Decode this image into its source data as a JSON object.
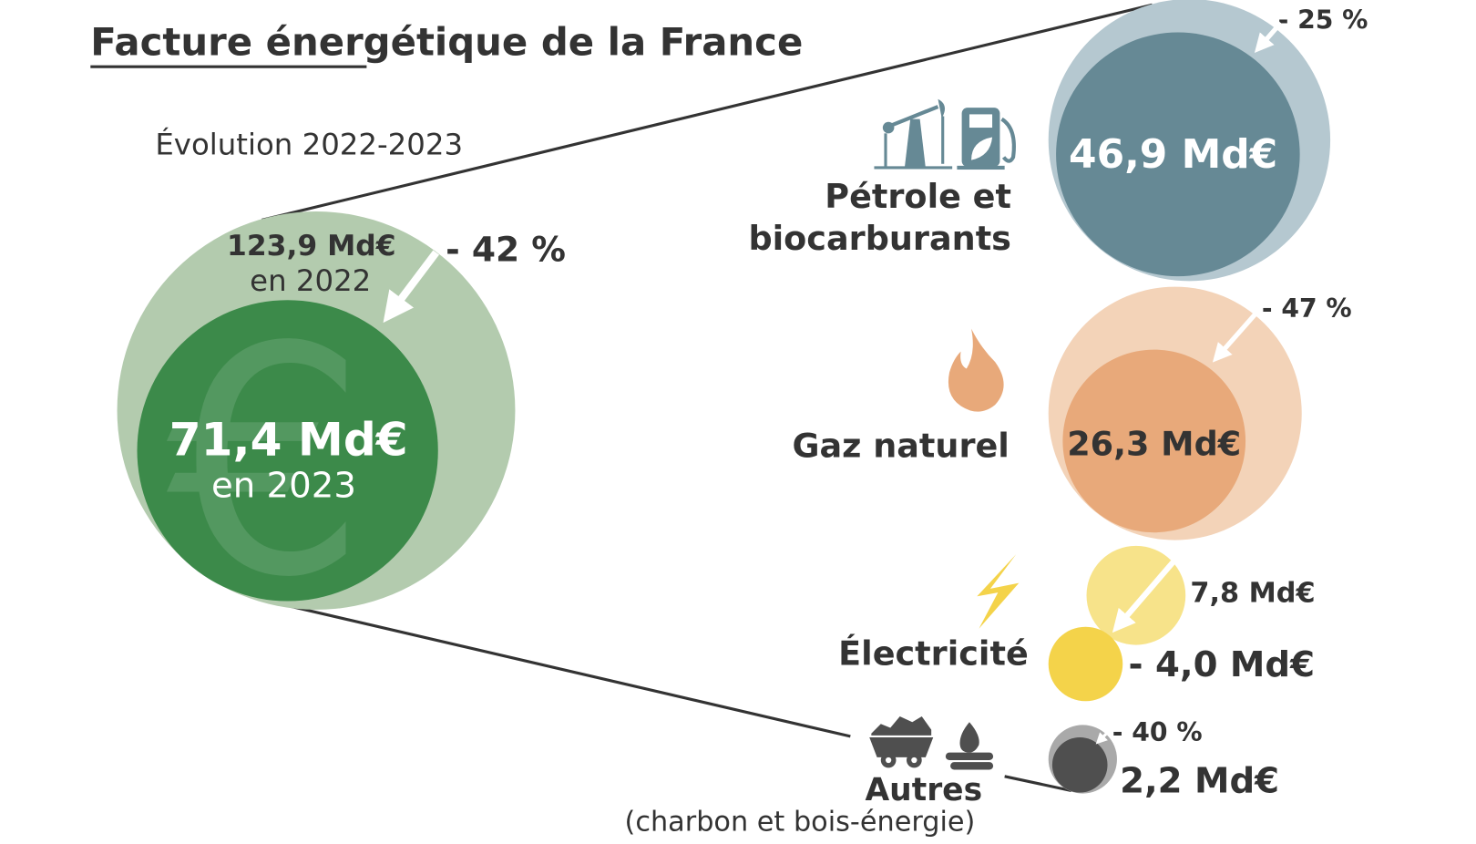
{
  "title": "Facture énergétique de la France",
  "subtitle": "Évolution 2022-2023",
  "total": {
    "value_2022": "123,9 Md€",
    "label_2022": "en 2022",
    "change": "- 42 %",
    "value_2023": "71,4 Md€",
    "label_2023": "en 2023"
  },
  "sources": [
    {
      "label_line1": "Pétrole et",
      "label_line2": "biocarburants",
      "value": "46,9 Md€",
      "change": "- 25 %",
      "icon": "oil-pump-and-fuel-pump-icon",
      "color_2022": "#b5c8d0",
      "color_2023": "#668995"
    },
    {
      "label": "Gaz naturel",
      "value": "26,3 Md€",
      "change": "- 47 %",
      "icon": "flame-icon",
      "color_2022": "#f3d3b8",
      "color_2023": "#e8a97a"
    },
    {
      "label": "Électricité",
      "value_2022": "7,8 Md€",
      "value": "- 4,0 Md€",
      "icon": "lightning-icon",
      "color_2022": "#f7e38a",
      "color_2023": "#f4d34a"
    },
    {
      "label": "Autres",
      "sublabel": "(charbon et bois-énergie)",
      "value": "2,2 Md€",
      "change": "- 40 %",
      "icon": "coal-cart-and-wood-fire-icon",
      "color_2022": "#a9a9a9",
      "color_2023": "#4f4f4f"
    }
  ],
  "colors": {
    "total_2022": "#b3cbae",
    "total_2023": "#3c8a4a",
    "text": "#333333"
  }
}
